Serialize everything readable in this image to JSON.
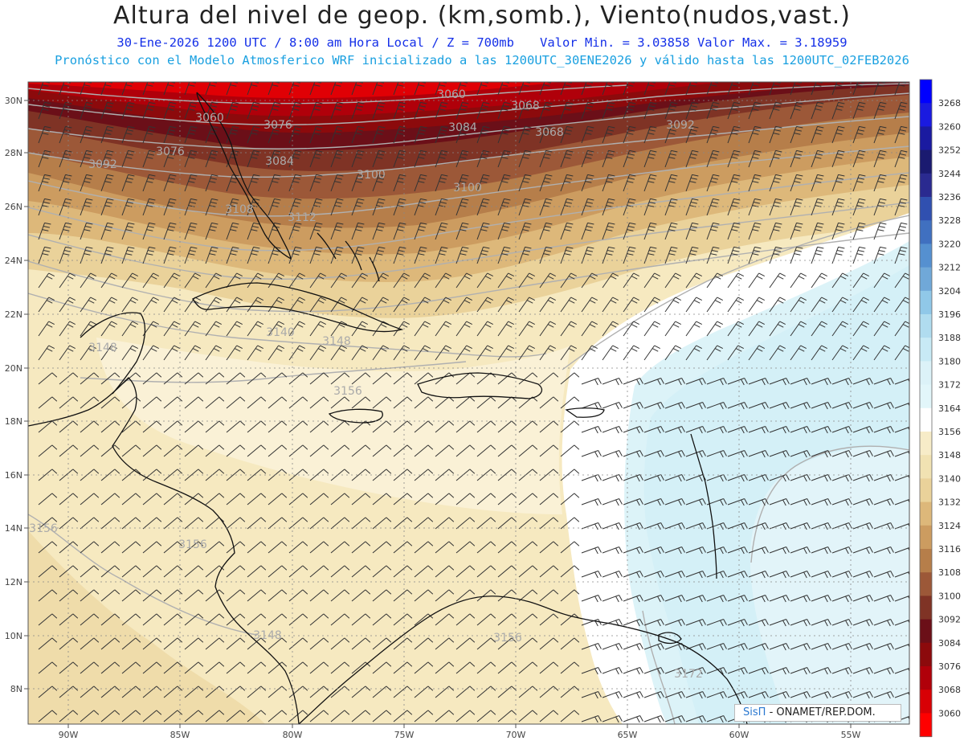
{
  "title": "Altura del nivel de geop. (km,somb.), Viento(nudos,vast.)",
  "subtitle": {
    "date_time": "30-Ene-2026  1200 UTC / 8:00 am Hora Local / Z = 700mb",
    "min_max": "Valor Min. = 3.03858  Valor Max. = 3.18959",
    "model_info": "Pronóstico con el Modelo Atmosferico WRF inicializado a las 1200UTC_30ENE2026 y válido hasta las  1200UTC_02FEB2026"
  },
  "axes": {
    "lon_labels": [
      "90W",
      "85W",
      "80W",
      "75W",
      "70W",
      "65W",
      "60W",
      "55W"
    ],
    "lat_labels": [
      "30N",
      "28N",
      "26N",
      "24N",
      "22N",
      "20N",
      "18N",
      "16N",
      "14N",
      "12N",
      "10N",
      "8N"
    ]
  },
  "colorbar": {
    "levels": [
      "3268",
      "3260",
      "3252",
      "3244",
      "3236",
      "3228",
      "3220",
      "3212",
      "3204",
      "3196",
      "3188",
      "3180",
      "3172",
      "3164",
      "3156",
      "3148",
      "3140",
      "3132",
      "3124",
      "3116",
      "3108",
      "3100",
      "3092",
      "3084",
      "3076",
      "3068",
      "3060"
    ],
    "colors": [
      "#0000ff",
      "#1a1ae0",
      "#1a1aa0",
      "#1a1a70",
      "#2a2a90",
      "#3050b0",
      "#4070c0",
      "#5590d0",
      "#70a8d8",
      "#90c8e8",
      "#b0dcef",
      "#c8eaf5",
      "#dcf2f8",
      "#e2f6fa",
      "#ffffff",
      "#f7ecc8",
      "#f1e2b2",
      "#ead29a",
      "#ddb87a",
      "#cc9c60",
      "#b67e4a",
      "#9c5838",
      "#7f3325",
      "#6b0f18",
      "#8c0a0c",
      "#b0000a",
      "#d80005",
      "#ff0000"
    ]
  },
  "contour_labels": [
    "3060",
    "3068",
    "3060",
    "3076",
    "3084",
    "3068",
    "3092",
    "3084",
    "3076",
    "3092",
    "3100",
    "3100",
    "3108",
    "3112",
    "3140",
    "3148",
    "3148",
    "3156",
    "3156",
    "3156",
    "3148",
    "3156",
    "3172"
  ],
  "credit": {
    "brand": "SisΠ",
    "text": "- ONAMET/REP.DOM."
  }
}
